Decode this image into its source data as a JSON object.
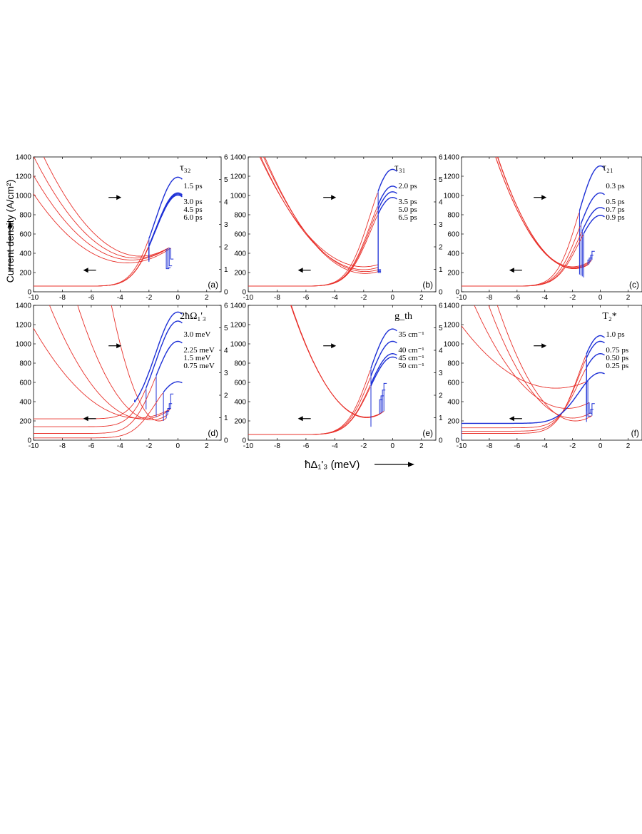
{
  "figure": {
    "ylabel": "Current density (A/cm²)",
    "xlabel": "ħΔ₁'₃ (meV)"
  },
  "chart_data": [
    {
      "type": "line",
      "panel_label": "(a)",
      "parameter": "τ₃₂",
      "xlim": [
        -10,
        3
      ],
      "ylim": [
        0,
        1400
      ],
      "y2lim": [
        0,
        6
      ],
      "xticks": [
        -10,
        -8,
        -6,
        -4,
        -2,
        0,
        2
      ],
      "yticks": [
        0,
        200,
        400,
        600,
        800,
        1000,
        1200,
        1400
      ],
      "y2ticks": [
        0,
        1,
        2,
        3,
        4,
        5,
        6
      ],
      "legend": [
        "1.5 ps",
        "3.0 ps",
        "4.5 ps",
        "6.0 ps"
      ],
      "current": [
        {
          "name": "1.5 ps",
          "vertex": [
            -3.5,
            300
          ],
          "k": 17,
          "cut": -0.5,
          "hook": 340
        },
        {
          "name": "3.0 ps",
          "vertex": [
            -3.2,
            330
          ],
          "k": 19,
          "cut": -0.6,
          "hook": 270
        },
        {
          "name": "4.5 ps",
          "vertex": [
            -2.9,
            350
          ],
          "k": 21,
          "cut": -0.7,
          "hook": 250
        },
        {
          "name": "6.0 ps",
          "vertex": [
            -2.6,
            370
          ],
          "k": 23,
          "cut": -0.8,
          "hook": 240
        }
      ],
      "gain": [
        {
          "name": "1.5 ps",
          "start": 0.25,
          "peak": 5.1,
          "split": -2.0,
          "jump": 340
        },
        {
          "name": "3.0 ps",
          "start": 0.25,
          "peak": 4.4,
          "split": -2.0,
          "jump": 330
        },
        {
          "name": "4.5 ps",
          "start": 0.25,
          "peak": 4.35,
          "split": -2.0,
          "jump": 320
        },
        {
          "name": "6.0 ps",
          "start": 0.25,
          "peak": 4.3,
          "split": -2.0,
          "jump": 310
        }
      ]
    },
    {
      "type": "line",
      "panel_label": "(b)",
      "parameter": "τ₃₁",
      "xlim": [
        -10,
        3
      ],
      "ylim": [
        0,
        1400
      ],
      "y2lim": [
        0,
        6
      ],
      "xticks": [
        -10,
        -8,
        -6,
        -4,
        -2,
        0,
        2
      ],
      "yticks": [
        0,
        200,
        400,
        600,
        800,
        1000,
        1200,
        1400
      ],
      "y2ticks": [
        0,
        1,
        2,
        3,
        4,
        5,
        6
      ],
      "legend": [
        "2.0 ps",
        "3.5 ps",
        "5.0 ps",
        "6.5 ps"
      ],
      "current": [
        {
          "name": "2.0 ps",
          "vertex": [
            -2.0,
            260
          ],
          "k": 22,
          "cut": -1.0,
          "hook": 230
        },
        {
          "name": "3.5 ps",
          "vertex": [
            -2.0,
            230
          ],
          "k": 23,
          "cut": -1.0,
          "hook": 220
        },
        {
          "name": "5.0 ps",
          "vertex": [
            -1.9,
            210
          ],
          "k": 24,
          "cut": -1.0,
          "hook": 210
        },
        {
          "name": "6.5 ps",
          "vertex": [
            -1.9,
            190
          ],
          "k": 25,
          "cut": -1.0,
          "hook": 200
        }
      ],
      "gain": [
        {
          "name": "2.0 ps",
          "start": 0.25,
          "peak": 5.45,
          "split": -1.0,
          "jump": 280
        },
        {
          "name": "3.5 ps",
          "start": 0.25,
          "peak": 4.7,
          "split": -1.0,
          "jump": 250
        },
        {
          "name": "5.0 ps",
          "start": 0.25,
          "peak": 4.45,
          "split": -1.0,
          "jump": 230
        },
        {
          "name": "6.5 ps",
          "start": 0.25,
          "peak": 4.2,
          "split": -1.0,
          "jump": 210
        }
      ]
    },
    {
      "type": "line",
      "panel_label": "(c)",
      "parameter": "τ₂₁",
      "xlim": [
        -10,
        3
      ],
      "ylim": [
        0,
        1400
      ],
      "y2lim": [
        0,
        6
      ],
      "xticks": [
        -10,
        -8,
        -6,
        -4,
        -2,
        0,
        2
      ],
      "yticks": [
        0,
        200,
        400,
        600,
        800,
        1000,
        1200,
        1400
      ],
      "y2ticks": [],
      "legend": [
        "0.3 ps",
        "0.5 ps",
        "0.7 ps",
        "0.9 ps"
      ],
      "current": [
        {
          "name": "0.3 ps",
          "vertex": [
            -2.0,
            260
          ],
          "k": 37,
          "cut": -0.6,
          "hook": 420
        },
        {
          "name": "0.5 ps",
          "vertex": [
            -2.0,
            250
          ],
          "k": 37.5,
          "cut": -0.7,
          "hook": 380
        },
        {
          "name": "0.7 ps",
          "vertex": [
            -1.9,
            245
          ],
          "k": 38,
          "cut": -0.8,
          "hook": 350
        },
        {
          "name": "0.9 ps",
          "vertex": [
            -1.9,
            240
          ],
          "k": 38.5,
          "cut": -0.9,
          "hook": 330
        }
      ],
      "gain": [
        {
          "name": "0.3 ps",
          "start": 0.25,
          "peak": 5.6,
          "split": -1.5,
          "jump": 180
        },
        {
          "name": "0.5 ps",
          "start": 0.25,
          "peak": 4.4,
          "split": -1.4,
          "jump": 170
        },
        {
          "name": "0.7 ps",
          "start": 0.25,
          "peak": 3.75,
          "split": -1.3,
          "jump": 160
        },
        {
          "name": "0.9 ps",
          "start": 0.25,
          "peak": 3.4,
          "split": -1.2,
          "jump": 150
        }
      ]
    },
    {
      "type": "line",
      "panel_label": "(d)",
      "parameter": "2ħΩ₁'₃",
      "xlim": [
        -10,
        3
      ],
      "ylim": [
        0,
        1400
      ],
      "y2lim": [
        0,
        6
      ],
      "xticks": [
        -10,
        -8,
        -6,
        -4,
        -2,
        0,
        2
      ],
      "yticks": [
        0,
        200,
        400,
        600,
        800,
        1000,
        1200,
        1400
      ],
      "y2ticks": [
        0,
        1,
        2,
        3,
        4,
        5,
        6
      ],
      "legend": [
        "3.0 meV",
        "2.25 meV",
        "1.5 meV",
        "0.75 meV"
      ],
      "current": [
        {
          "name": "3.0 meV",
          "vertex": [
            -2.8,
            230
          ],
          "k": 18,
          "cut": -0.5,
          "hook": 480
        },
        {
          "name": "2.25 meV",
          "vertex": [
            -2.4,
            220
          ],
          "k": 28,
          "cut": -0.6,
          "hook": 380
        },
        {
          "name": "1.5 meV",
          "vertex": [
            -1.8,
            210
          ],
          "k": 45,
          "cut": -0.7,
          "hook": 330
        },
        {
          "name": "0.75 meV",
          "vertex": [
            -1.3,
            200
          ],
          "k": 110,
          "cut": -0.8,
          "hook": 300
        }
      ],
      "gain": [
        {
          "name": "3.0 meV",
          "start": 0.95,
          "peak": 5.7,
          "split": -3.0,
          "jump": 420
        },
        {
          "name": "2.25 meV",
          "start": 0.6,
          "peak": 5.3,
          "split": -2.2,
          "jump": 320
        },
        {
          "name": "1.5 meV",
          "start": 0.3,
          "peak": 4.4,
          "split": -1.5,
          "jump": 240
        },
        {
          "name": "0.75 meV",
          "start": 0.1,
          "peak": 2.6,
          "split": -1.0,
          "jump": 200
        }
      ]
    },
    {
      "type": "line",
      "panel_label": "(e)",
      "parameter": "g_th",
      "xlim": [
        -10,
        3
      ],
      "ylim": [
        0,
        1400
      ],
      "y2lim": [
        0,
        6
      ],
      "xticks": [
        -10,
        -8,
        -6,
        -4,
        -2,
        0,
        2
      ],
      "yticks": [
        0,
        200,
        400,
        600,
        800,
        1000,
        1200,
        1400
      ],
      "y2ticks": [
        0,
        1,
        2,
        3,
        4,
        5,
        6
      ],
      "legend": [
        "35 cm⁻¹",
        "40 cm⁻¹",
        "45 cm⁻¹",
        "50 cm⁻¹"
      ],
      "current": [
        {
          "name": "35 cm⁻¹",
          "vertex": [
            -1.8,
            240
          ],
          "k": 42,
          "cut": -0.6,
          "hook": 590
        },
        {
          "name": "40 cm⁻¹",
          "vertex": [
            -1.8,
            238
          ],
          "k": 42.3,
          "cut": -0.7,
          "hook": 520
        },
        {
          "name": "45 cm⁻¹",
          "vertex": [
            -1.8,
            236
          ],
          "k": 42.6,
          "cut": -0.8,
          "hook": 460
        },
        {
          "name": "50 cm⁻¹",
          "vertex": [
            -1.8,
            234
          ],
          "k": 42.9,
          "cut": -0.9,
          "hook": 420
        }
      ],
      "gain": [
        {
          "name": "35 cm⁻¹",
          "start": 0.25,
          "peak": 4.95,
          "split": -1.5,
          "jump": 170
        },
        {
          "name": "40 cm⁻¹",
          "start": 0.25,
          "peak": 4.4,
          "split": -1.5,
          "jump": 160
        },
        {
          "name": "45 cm⁻¹",
          "start": 0.25,
          "peak": 3.85,
          "split": -1.5,
          "jump": 150
        },
        {
          "name": "50 cm⁻¹",
          "start": 0.25,
          "peak": 3.7,
          "split": -1.5,
          "jump": 140
        }
      ]
    },
    {
      "type": "line",
      "panel_label": "(f)",
      "parameter": "T₂*",
      "xlim": [
        -10,
        3
      ],
      "ylim": [
        0,
        1400
      ],
      "y2lim": [
        0,
        6
      ],
      "xticks": [
        -10,
        -8,
        -6,
        -4,
        -2,
        0,
        2
      ],
      "yticks": [
        0,
        200,
        400,
        600,
        800,
        1000,
        1200,
        1400
      ],
      "y2ticks": [],
      "legend": [
        "1.0 ps",
        "0.75 ps",
        "0.50 ps",
        "0.25 ps"
      ],
      "current": [
        {
          "name": "1.0 ps",
          "vertex": [
            -1.8,
            200
          ],
          "k": 38,
          "cut": -0.6,
          "hook": 380
        },
        {
          "name": "0.75 ps",
          "vertex": [
            -2.0,
            230
          ],
          "k": 32,
          "cut": -0.7,
          "hook": 320
        },
        {
          "name": "0.50 ps",
          "vertex": [
            -2.4,
            330
          ],
          "k": 24,
          "cut": -0.8,
          "hook": 280
        },
        {
          "name": "0.25 ps",
          "vertex": [
            -3.2,
            540
          ],
          "k": 14,
          "cut": -0.9,
          "hook": 250
        }
      ],
      "gain": [
        {
          "name": "1.0 ps",
          "start": 0.3,
          "peak": 4.65,
          "split": -1.0,
          "jump": 300
        },
        {
          "name": "0.75 ps",
          "start": 0.4,
          "peak": 4.4,
          "split": -1.0,
          "jump": 240
        },
        {
          "name": "0.50 ps",
          "start": 0.55,
          "peak": 3.85,
          "split": -1.0,
          "jump": 190
        },
        {
          "name": "0.25 ps",
          "start": 0.75,
          "peak": 3.0,
          "split": -10,
          "jump": 0
        }
      ]
    }
  ]
}
